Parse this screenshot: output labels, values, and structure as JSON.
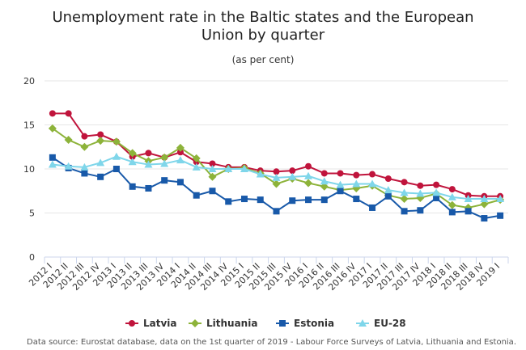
{
  "chart_data": {
    "type": "line",
    "title_lines": [
      "Unemployment rate in the Baltic states and the European",
      "Union by quarter"
    ],
    "subtitle": "(as per cent)",
    "source": "Data source: Eurostat database, data on the 1st quarter of 2019 - Labour Force Surveys of Latvia, Lithuania and Estonia.",
    "ylim": [
      0,
      20
    ],
    "yticks": [
      0,
      5,
      10,
      15,
      20
    ],
    "grid": true,
    "legend_position": "bottom",
    "categories": [
      "2012 I",
      "2012 II",
      "2012 III",
      "2012 IV",
      "2013 I",
      "2013 II",
      "2013 III",
      "2013 IV",
      "2014 I",
      "2014 II",
      "2014 III",
      "2014 IV",
      "2015 I",
      "2015 II",
      "2015 III",
      "2015 IV",
      "2016 I",
      "2016 II",
      "2016 III",
      "2016 IV",
      "2017 I",
      "2017 II",
      "2017 III",
      "2017 IV",
      "2018 I",
      "2018 II",
      "2018 III",
      "2018 IV",
      "2019 I"
    ],
    "series": [
      {
        "name": "Latvia",
        "color": "#c0143c",
        "marker": "circle",
        "values": [
          16.3,
          16.3,
          13.7,
          13.9,
          13.1,
          11.4,
          11.8,
          11.3,
          11.9,
          10.8,
          10.6,
          10.2,
          10.2,
          9.8,
          9.7,
          9.8,
          10.3,
          9.5,
          9.5,
          9.3,
          9.4,
          8.9,
          8.5,
          8.1,
          8.2,
          7.7,
          7.0,
          6.9,
          6.9
        ]
      },
      {
        "name": "Lithuania",
        "color": "#8db33a",
        "marker": "diamond",
        "values": [
          14.6,
          13.3,
          12.5,
          13.2,
          13.1,
          11.8,
          10.9,
          11.3,
          12.4,
          11.2,
          9.1,
          10.0,
          10.1,
          9.5,
          8.3,
          8.9,
          8.4,
          8.0,
          7.6,
          7.8,
          8.1,
          7.0,
          6.6,
          6.7,
          7.2,
          5.9,
          5.6,
          6.0,
          6.5
        ]
      },
      {
        "name": "Estonia",
        "color": "#1859a9",
        "marker": "square",
        "values": [
          11.3,
          10.1,
          9.5,
          9.1,
          10.0,
          8.0,
          7.8,
          8.7,
          8.5,
          7.0,
          7.5,
          6.3,
          6.6,
          6.5,
          5.2,
          6.4,
          6.5,
          6.5,
          7.5,
          6.6,
          5.6,
          6.9,
          5.2,
          5.3,
          6.7,
          5.1,
          5.2,
          4.4,
          4.7
        ]
      },
      {
        "name": "EU-28",
        "color": "#7fd6ea",
        "marker": "triangle",
        "values": [
          10.5,
          10.3,
          10.2,
          10.7,
          11.4,
          10.8,
          10.5,
          10.6,
          11.0,
          10.2,
          10.0,
          10.0,
          10.0,
          9.4,
          9.0,
          9.1,
          9.2,
          8.6,
          8.2,
          8.3,
          8.3,
          7.6,
          7.3,
          7.2,
          7.3,
          6.8,
          6.6,
          6.6,
          6.6
        ]
      }
    ]
  }
}
